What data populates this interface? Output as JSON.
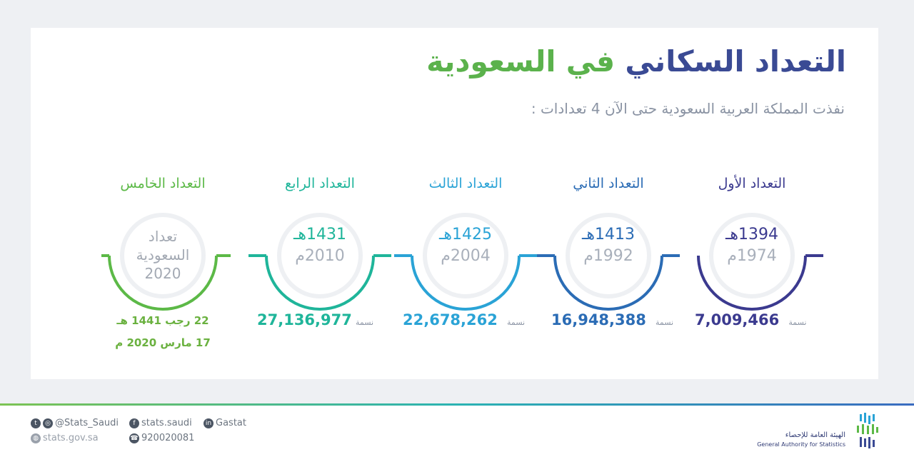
{
  "title": {
    "part1": "التعداد السكاني",
    "part2": "في السعودية"
  },
  "subtitle": "نفذت المملكة العربية السعودية حتى الآن 4 تعدادات :",
  "censuses": [
    {
      "label": "التعداد الأول",
      "hijri": "1394هـ",
      "greg": "1974م",
      "population": "7,009,466",
      "unit": "نسمة",
      "color": "#3b3a8f"
    },
    {
      "label": "التعداد الثاني",
      "hijri": "1413هـ",
      "greg": "1992م",
      "population": "16,948,388",
      "unit": "نسمة",
      "color": "#2b6cb5"
    },
    {
      "label": "التعداد الثالث",
      "hijri": "1425هـ",
      "greg": "2004م",
      "population": "22,678,262",
      "unit": "نسمة",
      "color": "#2aa3d6"
    },
    {
      "label": "التعداد الرابع",
      "hijri": "1431هـ",
      "greg": "2010م",
      "population": "27,136,977",
      "unit": "نسمة",
      "color": "#1fb59a"
    },
    {
      "label": "التعداد الخامس",
      "line1": "تعداد",
      "line2": "السعودية",
      "line3": "2020",
      "date_hijri": "22 رجب 1441 هـ",
      "date_greg": "17 مارس 2020 م",
      "color": "#5cb947"
    }
  ],
  "footer": {
    "twitter_instagram": "@Stats_Saudi",
    "facebook": "stats.saudi",
    "linkedin": "Gastat",
    "website": "stats.gov.sa",
    "phone": "920020081",
    "org_ar": "الهيئة العامة للإحصاء",
    "org_en": "General Authority for Statistics"
  },
  "icons": {
    "twitter": "twitter-icon",
    "instagram": "instagram-icon",
    "facebook": "facebook-icon",
    "linkedin": "linkedin-icon",
    "web": "globe-icon",
    "phone": "phone-icon"
  }
}
